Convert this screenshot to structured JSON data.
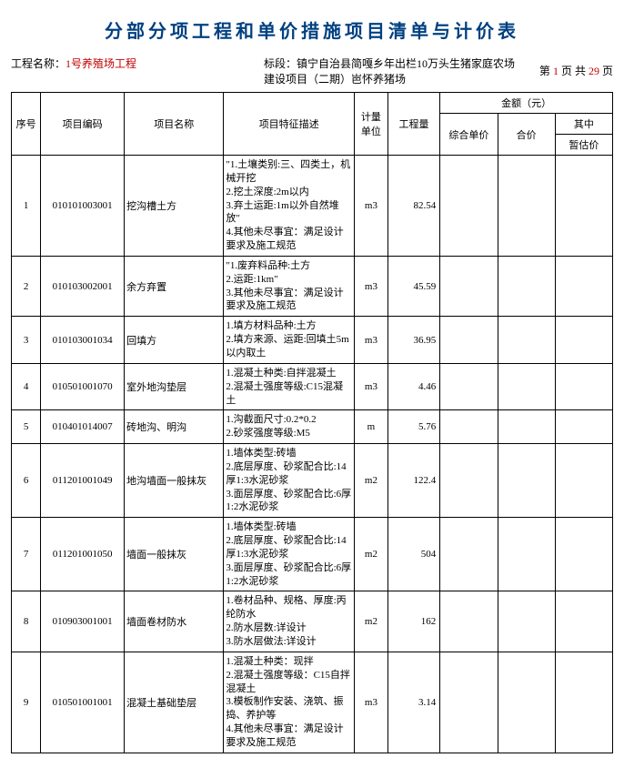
{
  "title": "分部分项工程和单价措施项目清单与计价表",
  "meta": {
    "project_label": "工程名称：",
    "project_value": "1号养殖场工程",
    "section_label": "标段：",
    "section_value": "镇宁自治县简嘎乡年出栏10万头生猪家庭农场建设项目（二期）岜怀养猪场",
    "page_prefix": "第",
    "page_current": "1",
    "page_mid": "页 共",
    "page_total": "29",
    "page_suffix": "页"
  },
  "headers": {
    "seq": "序号",
    "code": "项目编码",
    "name": "项目名称",
    "desc": "项目特征描述",
    "unit": "计量单位",
    "qty": "工程量",
    "amount": "金额（元）",
    "unit_price": "综合单价",
    "total": "合价",
    "sub": "其中",
    "temp": "暂估价"
  },
  "rows": [
    {
      "seq": "1",
      "code": "010101003001",
      "name": "挖沟槽土方",
      "desc": "\"1.土壤类别:三、四类土，机械开挖\n2.挖土深度:2m以内\n3.弃土运距:1m以外自然堆放\"\n4.其他未尽事宜：满足设计要求及施工规范",
      "unit": "m3",
      "qty": "82.54"
    },
    {
      "seq": "2",
      "code": "010103002001",
      "name": "余方弃置",
      "desc": "\"1.废弃料品种:土方\n2.运距:1km\"\n3.其他未尽事宜：满足设计要求及施工规范",
      "unit": "m3",
      "qty": "45.59"
    },
    {
      "seq": "3",
      "code": "010103001034",
      "name": "回填方",
      "desc": "1.填方材料品种:土方\n2.填方来源、运距:回填土5m以内取土",
      "unit": "m3",
      "qty": "36.95"
    },
    {
      "seq": "4",
      "code": "010501001070",
      "name": "室外地沟垫层",
      "desc": "1.混凝土种类:自拌混凝土\n2.混凝土强度等级:C15混凝土",
      "unit": "m3",
      "qty": "4.46"
    },
    {
      "seq": "5",
      "code": "010401014007",
      "name": "砖地沟、明沟",
      "desc": "1.沟截面尺寸:0.2*0.2\n2.砂浆强度等级:M5",
      "unit": "m",
      "qty": "5.76"
    },
    {
      "seq": "6",
      "code": "011201001049",
      "name": "地沟墙面一般抹灰",
      "desc": "1.墙体类型:砖墙\n2.底层厚度、砂浆配合比:14厚1:3水泥砂浆\n3.面层厚度、砂浆配合比:6厚1:2水泥砂浆",
      "unit": "m2",
      "qty": "122.4"
    },
    {
      "seq": "7",
      "code": "011201001050",
      "name": "墙面一般抹灰",
      "desc": "1.墙体类型:砖墙\n2.底层厚度、砂浆配合比:14厚1:3水泥砂浆\n3.面层厚度、砂浆配合比:6厚1:2水泥砂浆",
      "unit": "m2",
      "qty": "504"
    },
    {
      "seq": "8",
      "code": "010903001001",
      "name": "墙面卷材防水",
      "desc": "1.卷材品种、规格、厚度:丙纶防水\n2.防水层数:详设计\n3.防水层做法:详设计",
      "unit": "m2",
      "qty": "162"
    },
    {
      "seq": "9",
      "code": "010501001001",
      "name": "混凝土基础垫层",
      "desc": "1.混凝土种类：现拌\n2.混凝土强度等级：C15自拌混凝土\n3.模板制作安装、浇筑、振捣、养护等\n4.其他未尽事宜：满足设计要求及施工规范",
      "unit": "m3",
      "qty": "3.14"
    }
  ]
}
